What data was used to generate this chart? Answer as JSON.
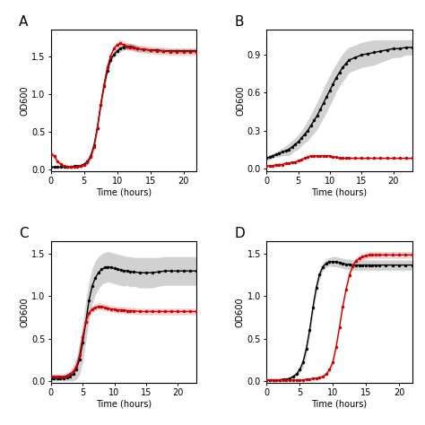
{
  "panel_A": {
    "label": "A",
    "time": [
      0,
      0.5,
      1,
      1.5,
      2,
      2.5,
      3,
      3.5,
      4,
      4.5,
      5,
      5.5,
      6,
      6.5,
      7,
      7.5,
      8,
      8.5,
      9,
      9.5,
      10,
      10.5,
      11,
      11.5,
      12,
      12.5,
      13,
      14,
      15,
      16,
      17,
      18,
      19,
      20,
      21,
      22
    ],
    "black_mean": [
      0.03,
      0.03,
      0.03,
      0.03,
      0.03,
      0.03,
      0.03,
      0.04,
      0.04,
      0.05,
      0.07,
      0.1,
      0.18,
      0.32,
      0.55,
      0.85,
      1.1,
      1.3,
      1.45,
      1.52,
      1.57,
      1.6,
      1.62,
      1.63,
      1.63,
      1.62,
      1.6,
      1.59,
      1.58,
      1.58,
      1.57,
      1.57,
      1.57,
      1.57,
      1.57,
      1.57
    ],
    "black_upper": [
      0.04,
      0.04,
      0.04,
      0.04,
      0.04,
      0.04,
      0.04,
      0.05,
      0.05,
      0.06,
      0.09,
      0.13,
      0.22,
      0.37,
      0.61,
      0.91,
      1.16,
      1.35,
      1.49,
      1.56,
      1.61,
      1.64,
      1.66,
      1.67,
      1.67,
      1.66,
      1.64,
      1.62,
      1.61,
      1.61,
      1.6,
      1.6,
      1.6,
      1.6,
      1.6,
      1.6
    ],
    "black_lower": [
      0.02,
      0.02,
      0.02,
      0.02,
      0.02,
      0.02,
      0.02,
      0.03,
      0.03,
      0.04,
      0.05,
      0.07,
      0.14,
      0.27,
      0.49,
      0.79,
      1.04,
      1.25,
      1.41,
      1.48,
      1.53,
      1.56,
      1.58,
      1.59,
      1.59,
      1.58,
      1.56,
      1.56,
      1.55,
      1.55,
      1.54,
      1.54,
      1.54,
      1.54,
      1.54,
      1.54
    ],
    "red_mean": [
      0.2,
      0.18,
      0.1,
      0.07,
      0.04,
      0.03,
      0.03,
      0.03,
      0.03,
      0.04,
      0.06,
      0.09,
      0.16,
      0.3,
      0.55,
      0.85,
      1.12,
      1.35,
      1.5,
      1.6,
      1.65,
      1.67,
      1.65,
      1.63,
      1.62,
      1.61,
      1.6,
      1.59,
      1.58,
      1.57,
      1.57,
      1.56,
      1.56,
      1.56,
      1.56,
      1.56
    ],
    "red_upper": [
      0.24,
      0.22,
      0.13,
      0.09,
      0.06,
      0.05,
      0.04,
      0.04,
      0.04,
      0.05,
      0.08,
      0.12,
      0.2,
      0.35,
      0.61,
      0.91,
      1.18,
      1.4,
      1.55,
      1.65,
      1.7,
      1.72,
      1.7,
      1.68,
      1.67,
      1.66,
      1.65,
      1.64,
      1.63,
      1.62,
      1.62,
      1.61,
      1.61,
      1.61,
      1.61,
      1.61
    ],
    "red_lower": [
      0.16,
      0.14,
      0.07,
      0.05,
      0.02,
      0.01,
      0.02,
      0.02,
      0.02,
      0.03,
      0.04,
      0.06,
      0.12,
      0.25,
      0.49,
      0.79,
      1.06,
      1.3,
      1.45,
      1.55,
      1.6,
      1.62,
      1.6,
      1.58,
      1.57,
      1.56,
      1.55,
      1.54,
      1.53,
      1.52,
      1.52,
      1.51,
      1.51,
      1.51,
      1.51,
      1.51
    ],
    "ylim": [
      -0.02,
      1.85
    ],
    "yticks": [
      0.0,
      0.5,
      1.0,
      1.5
    ],
    "xlim": [
      0,
      22
    ],
    "xticks": [
      0,
      5,
      10,
      15,
      20
    ]
  },
  "panel_B": {
    "label": "B",
    "time": [
      0,
      0.5,
      1,
      1.5,
      2,
      2.5,
      3,
      3.5,
      4,
      4.5,
      5,
      5.5,
      6,
      6.5,
      7,
      7.5,
      8,
      8.5,
      9,
      9.5,
      10,
      10.5,
      11,
      11.5,
      12,
      12.5,
      13,
      14,
      15,
      16,
      17,
      18,
      19,
      20,
      21,
      22,
      23
    ],
    "black_mean": [
      0.08,
      0.09,
      0.1,
      0.11,
      0.12,
      0.13,
      0.14,
      0.15,
      0.17,
      0.19,
      0.21,
      0.24,
      0.27,
      0.3,
      0.34,
      0.38,
      0.42,
      0.47,
      0.52,
      0.57,
      0.62,
      0.67,
      0.72,
      0.76,
      0.8,
      0.83,
      0.86,
      0.88,
      0.9,
      0.91,
      0.92,
      0.93,
      0.94,
      0.95,
      0.95,
      0.96,
      0.96
    ],
    "black_upper": [
      0.1,
      0.11,
      0.12,
      0.13,
      0.15,
      0.16,
      0.18,
      0.2,
      0.22,
      0.24,
      0.27,
      0.3,
      0.34,
      0.38,
      0.43,
      0.48,
      0.53,
      0.58,
      0.64,
      0.69,
      0.74,
      0.79,
      0.83,
      0.87,
      0.91,
      0.94,
      0.96,
      0.98,
      1.0,
      1.01,
      1.02,
      1.02,
      1.02,
      1.02,
      1.02,
      1.02,
      1.02
    ],
    "black_lower": [
      0.06,
      0.07,
      0.08,
      0.09,
      0.09,
      0.1,
      0.1,
      0.1,
      0.12,
      0.14,
      0.15,
      0.18,
      0.2,
      0.22,
      0.25,
      0.28,
      0.31,
      0.36,
      0.4,
      0.45,
      0.5,
      0.55,
      0.61,
      0.65,
      0.69,
      0.72,
      0.76,
      0.78,
      0.8,
      0.81,
      0.82,
      0.84,
      0.86,
      0.88,
      0.88,
      0.9,
      0.9
    ],
    "red_mean": [
      0.02,
      0.02,
      0.02,
      0.03,
      0.03,
      0.03,
      0.04,
      0.04,
      0.05,
      0.05,
      0.06,
      0.07,
      0.08,
      0.09,
      0.1,
      0.1,
      0.1,
      0.1,
      0.1,
      0.1,
      0.1,
      0.09,
      0.09,
      0.08,
      0.08,
      0.08,
      0.08,
      0.08,
      0.08,
      0.08,
      0.08,
      0.08,
      0.08,
      0.08,
      0.08,
      0.08,
      0.08
    ],
    "red_upper": [
      0.03,
      0.03,
      0.03,
      0.04,
      0.04,
      0.04,
      0.05,
      0.05,
      0.06,
      0.06,
      0.07,
      0.08,
      0.09,
      0.1,
      0.11,
      0.11,
      0.11,
      0.11,
      0.11,
      0.11,
      0.11,
      0.1,
      0.1,
      0.09,
      0.09,
      0.09,
      0.09,
      0.09,
      0.09,
      0.09,
      0.09,
      0.09,
      0.09,
      0.09,
      0.09,
      0.09,
      0.09
    ],
    "red_lower": [
      0.01,
      0.01,
      0.01,
      0.02,
      0.02,
      0.02,
      0.03,
      0.03,
      0.04,
      0.04,
      0.05,
      0.06,
      0.07,
      0.08,
      0.09,
      0.09,
      0.09,
      0.09,
      0.09,
      0.09,
      0.09,
      0.08,
      0.08,
      0.07,
      0.07,
      0.07,
      0.07,
      0.07,
      0.07,
      0.07,
      0.07,
      0.07,
      0.07,
      0.07,
      0.07,
      0.07,
      0.07
    ],
    "ylim": [
      -0.02,
      1.1
    ],
    "yticks": [
      0.0,
      0.3,
      0.6,
      0.9
    ],
    "xlim": [
      0,
      23
    ],
    "xticks": [
      0,
      5,
      10,
      15,
      20
    ]
  },
  "panel_C": {
    "label": "C",
    "time": [
      0,
      0.5,
      1,
      1.5,
      2,
      2.5,
      3,
      3.5,
      4,
      4.5,
      5,
      5.5,
      6,
      6.5,
      7,
      7.5,
      8,
      8.5,
      9,
      9.5,
      10,
      10.5,
      11,
      11.5,
      12,
      12.5,
      13,
      14,
      15,
      16,
      17,
      18,
      19,
      20,
      21,
      22,
      23
    ],
    "black_mean": [
      0.03,
      0.03,
      0.03,
      0.03,
      0.03,
      0.04,
      0.05,
      0.08,
      0.14,
      0.25,
      0.45,
      0.7,
      0.95,
      1.12,
      1.22,
      1.28,
      1.32,
      1.34,
      1.35,
      1.34,
      1.33,
      1.32,
      1.31,
      1.3,
      1.3,
      1.29,
      1.29,
      1.28,
      1.28,
      1.28,
      1.29,
      1.3,
      1.3,
      1.3,
      1.3,
      1.3,
      1.3
    ],
    "black_upper": [
      0.08,
      0.08,
      0.08,
      0.08,
      0.08,
      0.1,
      0.12,
      0.18,
      0.28,
      0.45,
      0.68,
      0.95,
      1.18,
      1.33,
      1.42,
      1.47,
      1.5,
      1.52,
      1.53,
      1.52,
      1.51,
      1.5,
      1.49,
      1.48,
      1.47,
      1.47,
      1.46,
      1.46,
      1.46,
      1.46,
      1.46,
      1.47,
      1.47,
      1.47,
      1.47,
      1.47,
      1.47
    ],
    "black_lower": [
      0.0,
      0.0,
      0.0,
      0.0,
      0.0,
      0.0,
      0.0,
      0.0,
      0.02,
      0.07,
      0.22,
      0.47,
      0.72,
      0.91,
      1.02,
      1.09,
      1.14,
      1.16,
      1.17,
      1.16,
      1.15,
      1.14,
      1.13,
      1.12,
      1.13,
      1.11,
      1.12,
      1.1,
      1.1,
      1.1,
      1.12,
      1.13,
      1.13,
      1.13,
      1.13,
      1.13,
      1.13
    ],
    "red_mean": [
      0.05,
      0.05,
      0.05,
      0.05,
      0.05,
      0.06,
      0.08,
      0.11,
      0.17,
      0.3,
      0.52,
      0.7,
      0.8,
      0.85,
      0.87,
      0.88,
      0.88,
      0.87,
      0.86,
      0.85,
      0.85,
      0.84,
      0.84,
      0.84,
      0.83,
      0.83,
      0.83,
      0.82,
      0.82,
      0.82,
      0.82,
      0.82,
      0.82,
      0.82,
      0.82,
      0.82,
      0.82
    ],
    "red_upper": [
      0.06,
      0.06,
      0.06,
      0.06,
      0.06,
      0.07,
      0.09,
      0.12,
      0.19,
      0.33,
      0.56,
      0.74,
      0.84,
      0.89,
      0.91,
      0.92,
      0.92,
      0.91,
      0.9,
      0.89,
      0.89,
      0.88,
      0.88,
      0.88,
      0.87,
      0.87,
      0.87,
      0.86,
      0.86,
      0.86,
      0.86,
      0.86,
      0.86,
      0.86,
      0.86,
      0.86,
      0.86
    ],
    "red_lower": [
      0.04,
      0.04,
      0.04,
      0.04,
      0.04,
      0.05,
      0.07,
      0.1,
      0.15,
      0.27,
      0.48,
      0.66,
      0.76,
      0.81,
      0.83,
      0.84,
      0.84,
      0.83,
      0.82,
      0.81,
      0.81,
      0.8,
      0.8,
      0.8,
      0.79,
      0.79,
      0.79,
      0.78,
      0.78,
      0.78,
      0.78,
      0.78,
      0.78,
      0.78,
      0.78,
      0.78,
      0.78
    ],
    "ylim": [
      -0.02,
      1.65
    ],
    "yticks": [
      0.0,
      0.5,
      1.0,
      1.5
    ],
    "xlim": [
      0,
      23
    ],
    "xticks": [
      0,
      5,
      10,
      15,
      20
    ]
  },
  "panel_D": {
    "label": "D",
    "time": [
      0,
      0.5,
      1,
      1.5,
      2,
      2.5,
      3,
      3.5,
      4,
      4.5,
      5,
      5.5,
      6,
      6.5,
      7,
      7.5,
      8,
      8.5,
      9,
      9.5,
      10,
      10.5,
      11,
      11.5,
      12,
      12.5,
      13,
      13.5,
      14,
      14.5,
      15,
      15.5,
      16,
      16.5,
      17,
      18,
      19,
      20,
      21,
      22
    ],
    "black_mean": [
      0.01,
      0.01,
      0.01,
      0.01,
      0.01,
      0.02,
      0.02,
      0.03,
      0.05,
      0.08,
      0.13,
      0.22,
      0.38,
      0.6,
      0.87,
      1.1,
      1.26,
      1.35,
      1.39,
      1.41,
      1.41,
      1.41,
      1.4,
      1.39,
      1.38,
      1.38,
      1.37,
      1.37,
      1.37,
      1.37,
      1.37,
      1.37,
      1.37,
      1.37,
      1.37,
      1.37,
      1.37,
      1.37,
      1.37,
      1.37
    ],
    "black_upper": [
      0.02,
      0.02,
      0.02,
      0.02,
      0.02,
      0.03,
      0.03,
      0.04,
      0.06,
      0.1,
      0.17,
      0.28,
      0.46,
      0.68,
      0.95,
      1.17,
      1.32,
      1.4,
      1.44,
      1.46,
      1.47,
      1.47,
      1.46,
      1.45,
      1.44,
      1.44,
      1.43,
      1.43,
      1.43,
      1.43,
      1.43,
      1.43,
      1.43,
      1.43,
      1.43,
      1.43,
      1.43,
      1.43,
      1.43,
      1.43
    ],
    "black_lower": [
      0.0,
      0.0,
      0.0,
      0.0,
      0.0,
      0.01,
      0.01,
      0.02,
      0.04,
      0.06,
      0.09,
      0.16,
      0.3,
      0.52,
      0.79,
      1.03,
      1.2,
      1.3,
      1.34,
      1.36,
      1.35,
      1.35,
      1.34,
      1.33,
      1.32,
      1.32,
      1.31,
      1.31,
      1.31,
      1.31,
      1.31,
      1.31,
      1.31,
      1.31,
      1.31,
      1.31,
      1.31,
      1.31,
      1.31,
      1.31
    ],
    "red_mean": [
      0.01,
      0.01,
      0.01,
      0.01,
      0.01,
      0.01,
      0.01,
      0.01,
      0.01,
      0.01,
      0.01,
      0.01,
      0.02,
      0.02,
      0.03,
      0.03,
      0.04,
      0.05,
      0.08,
      0.13,
      0.22,
      0.4,
      0.63,
      0.88,
      1.08,
      1.25,
      1.36,
      1.42,
      1.45,
      1.47,
      1.48,
      1.49,
      1.49,
      1.49,
      1.49,
      1.49,
      1.49,
      1.49,
      1.49,
      1.49
    ],
    "red_upper": [
      0.02,
      0.02,
      0.02,
      0.02,
      0.02,
      0.02,
      0.02,
      0.02,
      0.02,
      0.02,
      0.02,
      0.02,
      0.03,
      0.03,
      0.04,
      0.04,
      0.05,
      0.07,
      0.1,
      0.16,
      0.26,
      0.45,
      0.68,
      0.93,
      1.13,
      1.29,
      1.4,
      1.46,
      1.49,
      1.51,
      1.52,
      1.53,
      1.53,
      1.53,
      1.53,
      1.53,
      1.53,
      1.53,
      1.53,
      1.53
    ],
    "red_lower": [
      0.0,
      0.0,
      0.0,
      0.0,
      0.0,
      0.0,
      0.0,
      0.0,
      0.0,
      0.0,
      0.0,
      0.0,
      0.01,
      0.01,
      0.02,
      0.02,
      0.03,
      0.03,
      0.06,
      0.1,
      0.18,
      0.35,
      0.58,
      0.83,
      1.03,
      1.21,
      1.32,
      1.38,
      1.41,
      1.43,
      1.44,
      1.45,
      1.45,
      1.45,
      1.45,
      1.45,
      1.45,
      1.45,
      1.45,
      1.45
    ],
    "ylim": [
      -0.02,
      1.65
    ],
    "yticks": [
      0.0,
      0.5,
      1.0,
      1.5
    ],
    "xlim": [
      0,
      22
    ],
    "xticks": [
      0,
      5,
      10,
      15,
      20
    ]
  },
  "black_color": "#000000",
  "red_color": "#cc0000",
  "shade_alpha": 0.18,
  "marker_size": 2.5,
  "line_width": 1.0,
  "font_size": 7,
  "label_font_size": 11,
  "background_color": "#ffffff"
}
